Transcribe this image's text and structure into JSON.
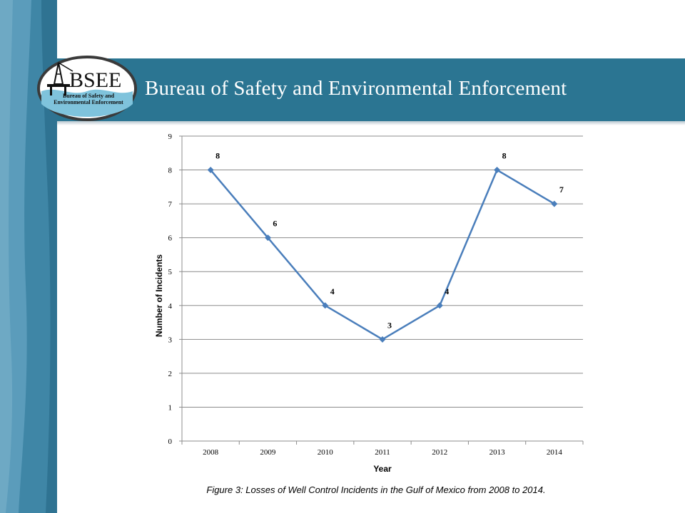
{
  "header": {
    "logo_text": "BSEE",
    "logo_subtitle": "Bureau of Safety and Environmental Enforcement",
    "title": "Bureau of Safety and Environmental Enforcement"
  },
  "colors": {
    "banner": "#2b7592",
    "side_panel": "#3f86a6",
    "series_line": "#4a7ebb",
    "gridline": "#8c8c8c"
  },
  "caption": "Figure 3: Losses of Well Control Incidents in the Gulf of Mexico from 2008 to 2014.",
  "chart_data": {
    "type": "line",
    "categories": [
      "2008",
      "2009",
      "2010",
      "2011",
      "2012",
      "2013",
      "2014"
    ],
    "series": [
      {
        "values": [
          8,
          6,
          4,
          3,
          4,
          8,
          7
        ],
        "marker": "diamond"
      }
    ],
    "xlabel": "Year",
    "ylabel": "Number of Incidents",
    "ylim": [
      0,
      9
    ],
    "yticks": [
      0,
      1,
      2,
      3,
      4,
      5,
      6,
      7,
      8,
      9
    ],
    "grid": true,
    "data_labels": true
  }
}
